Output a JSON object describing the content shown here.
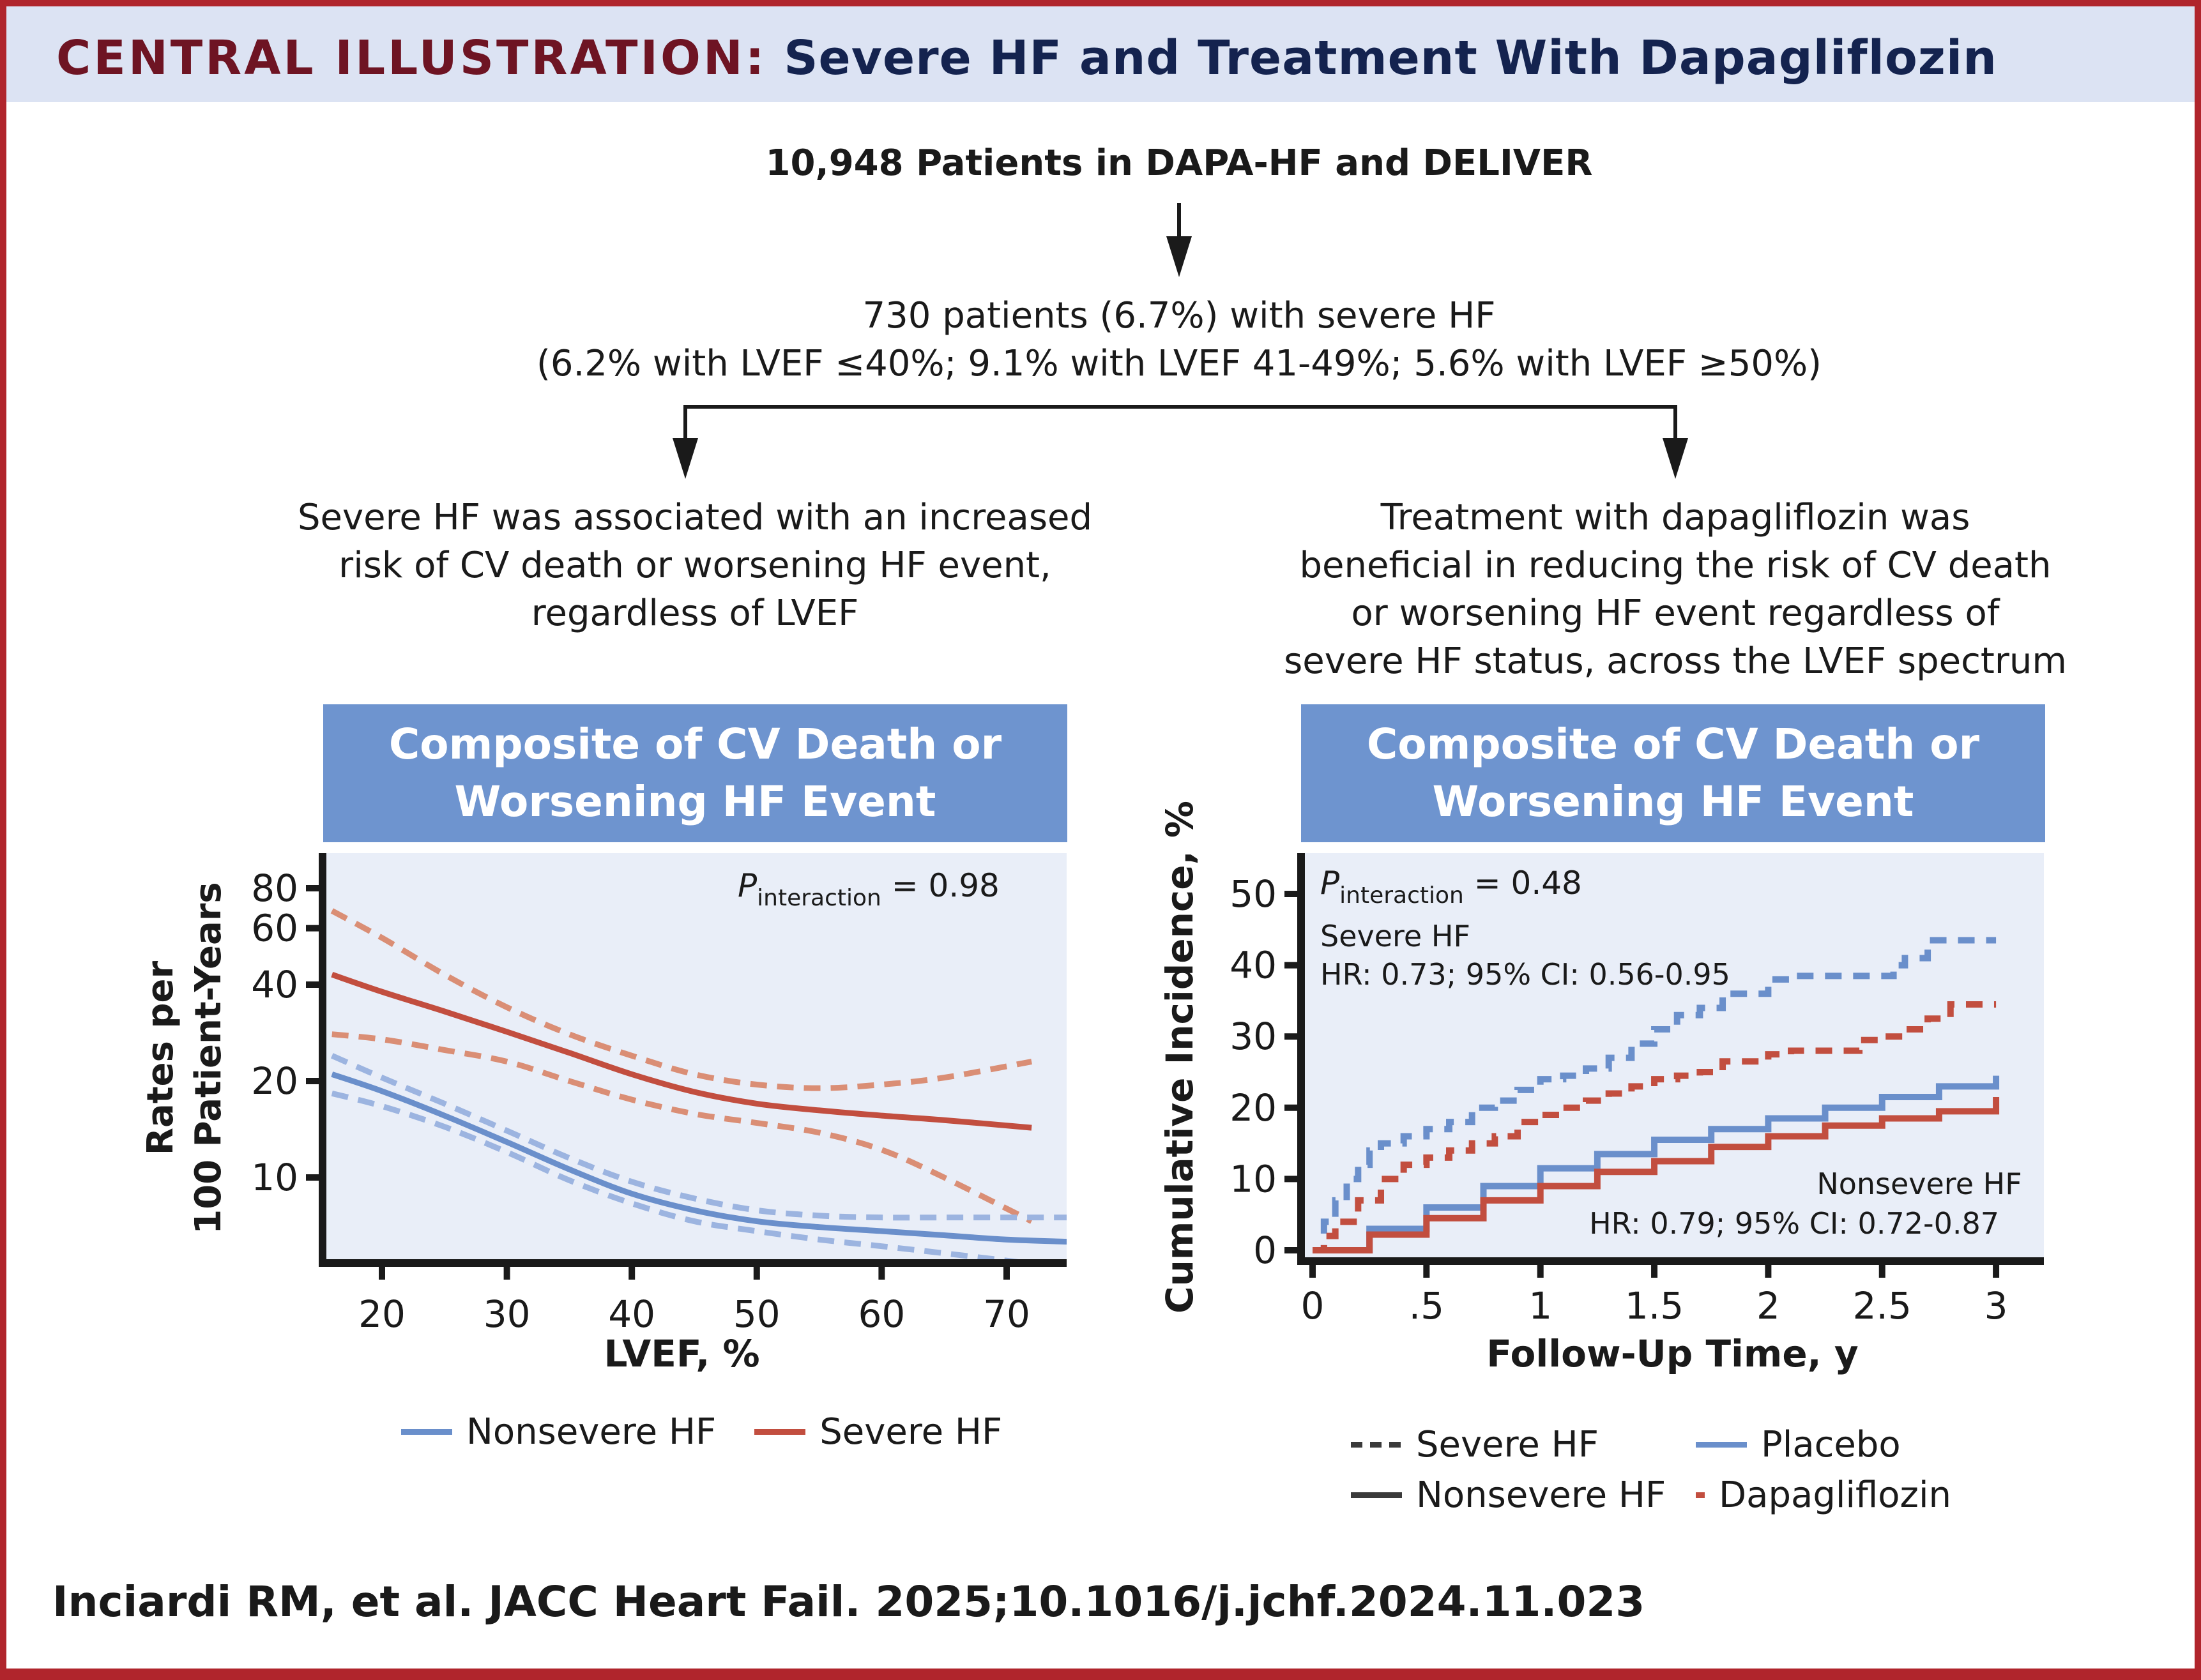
{
  "header": {
    "label": "CENTRAL ILLUSTRATION:",
    "title": "Severe HF and Treatment With Dapagliflozin"
  },
  "flow": {
    "top": "10,948 Patients in DAPA-HF and DELIVER",
    "middle_line1": "730 patients (6.7%) with severe HF",
    "middle_line2": "(6.2% with LVEF ≤40%; 9.1% with LVEF 41-49%; 5.6% with LVEF ≥50%)",
    "left_finding": [
      "Severe HF was associated with an increased",
      "risk of CV death or worsening HF event,",
      "regardless of LVEF"
    ],
    "right_finding": [
      "Treatment with dapagliflozin was",
      "beneficial in reducing the risk of CV death",
      "or worsening HF event regardless of",
      "severe HF status, across the LVEF spectrum"
    ]
  },
  "colors": {
    "frame": "#B0252C",
    "header_bg": "#DCE3F3",
    "label": "#6E1423",
    "title": "#14234F",
    "panel_head": "#6E94CF",
    "plot_bg": "#E9EEF8",
    "blue": "#6A8FCB",
    "blue_light": "#9CB4E0",
    "red": "#C24E3F",
    "red_light": "#DA8E75",
    "legend_dark": "#3a3a3a"
  },
  "chart_data": [
    {
      "type": "line",
      "panel_title": [
        "Composite of CV Death or",
        "Worsening HF Event"
      ],
      "xlabel": "LVEF, %",
      "ylabel": [
        "Rates per",
        "100 Patient-Years"
      ],
      "yscale": "log",
      "xlim": [
        15,
        75
      ],
      "ylim": [
        5.5,
        100
      ],
      "xticks": [
        20,
        30,
        40,
        50,
        60,
        70
      ],
      "yticks": [
        10,
        20,
        40,
        60,
        80
      ],
      "annotation": {
        "p_label": "P",
        "p_sub": "interaction",
        "p_value": "= 0.98"
      },
      "legend": [
        {
          "name": "Nonsevere HF",
          "color": "#6A8FCB"
        },
        {
          "name": "Severe HF",
          "color": "#C24E3F"
        }
      ],
      "legend_position": "bottom",
      "series": [
        {
          "name": "Severe HF",
          "style": "solid",
          "color": "#C24E3F",
          "x": [
            16,
            20,
            25,
            30,
            35,
            40,
            45,
            50,
            55,
            60,
            65,
            72
          ],
          "y": [
            43,
            38,
            33,
            28.5,
            24.5,
            21,
            18.5,
            17,
            16.2,
            15.6,
            15.1,
            14.3
          ]
        },
        {
          "name": "Severe HF upper CI",
          "style": "dashed",
          "color": "#DA8E75",
          "x": [
            16,
            20,
            25,
            30,
            35,
            40,
            45,
            50,
            55,
            60,
            65,
            72
          ],
          "y": [
            68,
            56,
            43,
            34,
            28,
            24,
            21,
            19.5,
            19,
            19.5,
            20.5,
            23
          ]
        },
        {
          "name": "Severe HF lower CI",
          "style": "dashed",
          "color": "#DA8E75",
          "x": [
            16,
            20,
            25,
            30,
            35,
            40,
            45,
            50,
            55,
            60,
            65,
            72
          ],
          "y": [
            28,
            27,
            25,
            23,
            20,
            17.5,
            15.8,
            14.8,
            13.8,
            12.2,
            10,
            7.3
          ]
        },
        {
          "name": "Nonsevere HF",
          "style": "solid",
          "color": "#6A8FCB",
          "x": [
            16,
            20,
            25,
            30,
            35,
            40,
            45,
            50,
            55,
            60,
            65,
            70,
            75
          ],
          "y": [
            21,
            18.6,
            15.6,
            12.9,
            10.6,
            8.9,
            7.9,
            7.3,
            7.0,
            6.8,
            6.6,
            6.4,
            6.3
          ]
        },
        {
          "name": "Nonsevere HF upper CI",
          "style": "dashed",
          "color": "#9CB4E0",
          "x": [
            16,
            20,
            25,
            30,
            35,
            40,
            45,
            50,
            55,
            60,
            65,
            70,
            75
          ],
          "y": [
            24,
            20.5,
            17,
            14,
            11.5,
            9.7,
            8.6,
            7.9,
            7.6,
            7.5,
            7.5,
            7.5,
            7.5
          ]
        },
        {
          "name": "Nonsevere HF lower CI",
          "style": "dashed",
          "color": "#9CB4E0",
          "x": [
            16,
            20,
            25,
            30,
            35,
            40,
            45,
            50,
            55,
            60,
            65,
            70,
            75
          ],
          "y": [
            18.3,
            16.7,
            14.4,
            12.0,
            9.8,
            8.3,
            7.3,
            6.8,
            6.4,
            6.1,
            5.8,
            5.5,
            5.2
          ]
        }
      ]
    },
    {
      "type": "line",
      "step": true,
      "panel_title": [
        "Composite of CV Death or",
        "Worsening HF Event"
      ],
      "xlabel": "Follow-Up Time, y",
      "ylabel": "Cumulative Incidence, %",
      "xlim": [
        -0.05,
        3.2
      ],
      "ylim": [
        -2,
        55
      ],
      "xticks": [
        0,
        0.5,
        1,
        1.5,
        2,
        2.5,
        3
      ],
      "xtick_labels": [
        "0",
        ".5",
        "1",
        "1.5",
        "2",
        "2.5",
        "3"
      ],
      "yticks": [
        0,
        10,
        20,
        30,
        40,
        50
      ],
      "annotations": {
        "p_label": "P",
        "p_sub": "interaction",
        "p_value": "= 0.48",
        "severe_title": "Severe HF",
        "severe_hr": "HR: 0.73; 95% CI: 0.56-0.95",
        "nonsevere_title": "Nonsevere HF",
        "nonsevere_hr": "HR: 0.79; 95% CI: 0.72-0.87"
      },
      "legend": [
        {
          "name": "Severe HF",
          "style": "dashed",
          "color": "#3a3a3a"
        },
        {
          "name": "Placebo",
          "style": "solid",
          "color": "#6A8FCB"
        },
        {
          "name": "Nonsevere HF",
          "style": "solid",
          "color": "#3a3a3a"
        },
        {
          "name": "Dapagliflozin",
          "style": "solid",
          "color": "#C24E3F"
        }
      ],
      "legend_position": "bottom",
      "series": [
        {
          "name": "Severe HF - Placebo",
          "style": "dashed",
          "color": "#6A8FCB",
          "x": [
            0,
            0.05,
            0.1,
            0.15,
            0.2,
            0.25,
            0.3,
            0.4,
            0.5,
            0.6,
            0.7,
            0.8,
            0.9,
            1.0,
            1.1,
            1.2,
            1.3,
            1.4,
            1.5,
            1.6,
            1.7,
            1.8,
            1.9,
            2.0,
            2.1,
            2.3,
            2.5,
            2.55,
            2.6,
            2.7,
            3.0
          ],
          "y": [
            0,
            4,
            7,
            10,
            12,
            14,
            15,
            16,
            17,
            18,
            20,
            21,
            22.5,
            24,
            24.5,
            25.5,
            27,
            29,
            31,
            33,
            34,
            36,
            36,
            38,
            38.5,
            38.5,
            38.5,
            40,
            41,
            43.5,
            43.5
          ]
        },
        {
          "name": "Severe HF - Dapagliflozin",
          "style": "dashed",
          "color": "#C24E3F",
          "x": [
            0,
            0.05,
            0.1,
            0.2,
            0.3,
            0.4,
            0.5,
            0.6,
            0.7,
            0.8,
            0.9,
            1.0,
            1.1,
            1.2,
            1.3,
            1.4,
            1.5,
            1.6,
            1.7,
            1.8,
            2.0,
            2.1,
            2.2,
            2.4,
            2.5,
            2.6,
            2.7,
            2.8,
            3.0
          ],
          "y": [
            0,
            2,
            4,
            7,
            10,
            12,
            13,
            14,
            15,
            16,
            18,
            19,
            20,
            21,
            22,
            23,
            24,
            24.5,
            25,
            26.5,
            27.5,
            28,
            28,
            29.5,
            30,
            31,
            32.5,
            34.5,
            34.5
          ]
        },
        {
          "name": "Nonsevere HF - Placebo",
          "style": "solid",
          "color": "#6A8FCB",
          "x": [
            0,
            0.25,
            0.5,
            0.75,
            1.0,
            1.25,
            1.5,
            1.75,
            2.0,
            2.25,
            2.5,
            2.75,
            3.0
          ],
          "y": [
            0,
            3,
            6,
            9,
            11.5,
            13.5,
            15.5,
            17,
            18.5,
            20,
            21.5,
            23,
            24.5
          ]
        },
        {
          "name": "Nonsevere HF - Dapagliflozin",
          "style": "solid",
          "color": "#C24E3F",
          "x": [
            0,
            0.25,
            0.5,
            0.75,
            1.0,
            1.25,
            1.5,
            1.75,
            2.0,
            2.25,
            2.5,
            2.75,
            3.0
          ],
          "y": [
            0,
            2.2,
            4.5,
            7,
            9,
            11,
            12.5,
            14.5,
            16,
            17.5,
            18.5,
            19.5,
            21.5
          ]
        }
      ]
    }
  ],
  "left_legend": [
    {
      "name": "Nonsevere HF"
    },
    {
      "name": "Severe HF"
    }
  ],
  "citation": "Inciardi RM, et al. JACC Heart Fail. 2025;10.1016/j.jchf.2024.11.023"
}
